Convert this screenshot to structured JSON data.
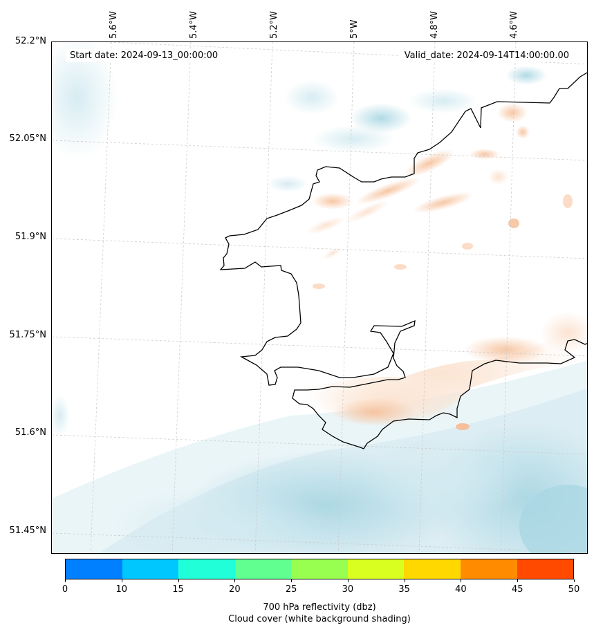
{
  "map": {
    "start_date": "Start date: 2024-09-13_00:00:00",
    "valid_date": "Valid_date: 2024-09-14T14:00:00.00",
    "lon_labels": [
      "5.6°W",
      "5.4°W",
      "5.2°W",
      "5°W",
      "4.8°W",
      "4.6°W"
    ],
    "lat_labels": [
      "52.2°N",
      "52.05°N",
      "51.9°N",
      "51.75°N",
      "51.6°N",
      "51.45°N"
    ],
    "coastline_color": "#000000",
    "gridline_color": "#cccccc",
    "cloud_shading_color": "#9ecfdd",
    "reflectivity_shading_color": "#f4b98a"
  },
  "colorbar": {
    "ticks": [
      "0",
      "10",
      "15",
      "20",
      "25",
      "30",
      "35",
      "40",
      "45",
      "50"
    ],
    "colors": [
      "#0080ff",
      "#00c8ff",
      "#20ffd8",
      "#60ff90",
      "#98ff50",
      "#d8ff20",
      "#ffd800",
      "#ff8c00",
      "#ff4a00"
    ],
    "title_line1": "700 hPa reflectivity (dbz)",
    "title_line2": "Cloud cover (white background shading)"
  }
}
